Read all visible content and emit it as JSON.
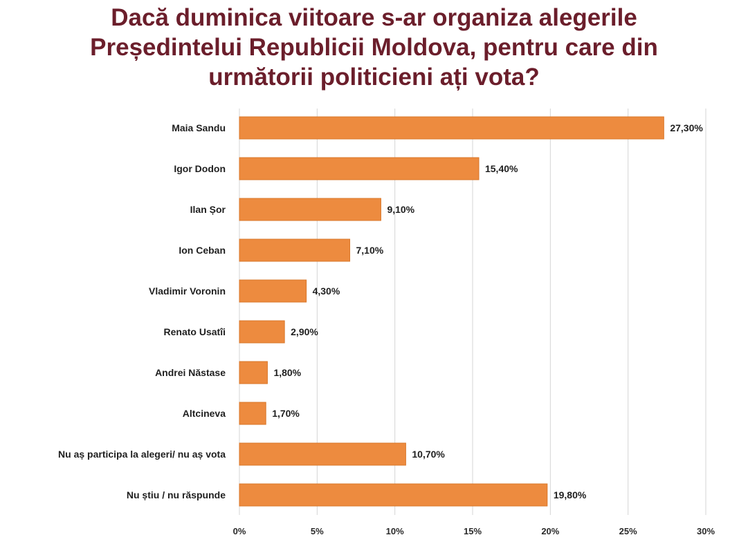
{
  "colors": {
    "title": "#6b1e2b",
    "bar": "#ed8b3f",
    "bar_edge": "#d9772a",
    "grid": "#d4d4d4",
    "text": "#1f1f1f"
  },
  "chart_data": {
    "type": "bar",
    "orientation": "horizontal",
    "title_lines": [
      "Dacă duminica viitoare s-ar organiza alegerile",
      "Președintelui Republicii Moldova, pentru care din",
      "următorii politicieni ați vota?"
    ],
    "categories": [
      "Maia Sandu",
      "Igor Dodon",
      "Ilan Șor",
      "Ion Ceban",
      "Vladimir Voronin",
      "Renato Usatîi",
      "Andrei Năstase",
      "Altcineva",
      "Nu aș participa la alegeri/ nu aș vota",
      "Nu știu / nu răspunde"
    ],
    "values": [
      27.3,
      15.4,
      9.1,
      7.1,
      4.3,
      2.9,
      1.8,
      1.7,
      10.7,
      19.8
    ],
    "value_labels": [
      "27,30%",
      "15,40%",
      "9,10%",
      "7,10%",
      "4,30%",
      "2,90%",
      "1,80%",
      "1,70%",
      "10,70%",
      "19,80%"
    ],
    "xlim": [
      0,
      30
    ],
    "ticks": [
      0,
      5,
      10,
      15,
      20,
      25,
      30
    ],
    "tick_labels": [
      "0%",
      "5%",
      "10%",
      "15%",
      "20%",
      "25%",
      "30%"
    ],
    "grid": true,
    "legend": false
  }
}
